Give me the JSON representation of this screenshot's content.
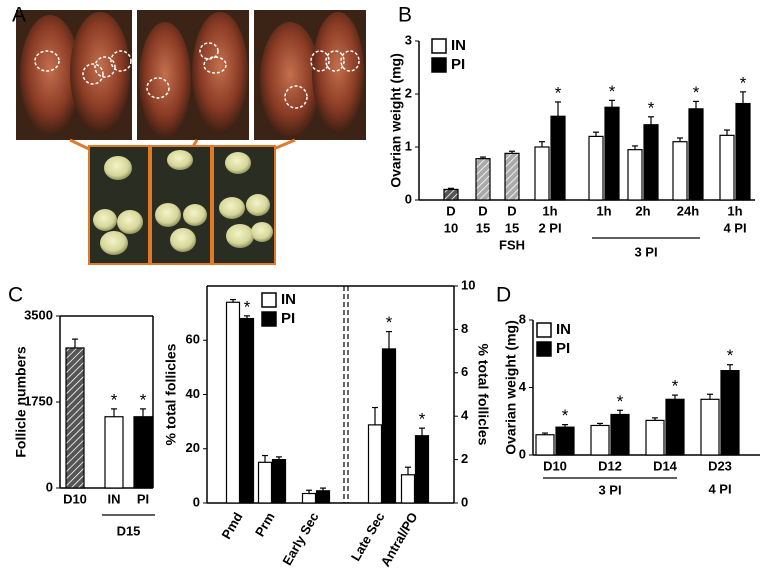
{
  "panel_labels": [
    "A",
    "B",
    "C",
    "D"
  ],
  "chart_data": [
    {
      "type": "bar",
      "ylabel": "Ovarian weight (mg)",
      "ylim": [
        0,
        3
      ],
      "yticks": [
        0,
        1,
        2,
        3
      ],
      "legend": "upper left",
      "categories": [
        [
          "D",
          "10"
        ],
        [
          "D",
          "15"
        ],
        [
          "D",
          "15",
          "FSH"
        ],
        [
          "1h",
          "2 PI"
        ],
        [
          "1h"
        ],
        [
          "2h"
        ],
        [
          "24h"
        ],
        [
          "1h",
          "4 PI"
        ]
      ],
      "groups": [
        {
          "label": "3 PI",
          "span": [
            4,
            6
          ]
        }
      ],
      "values": [
        0.2,
        0.78,
        0.88,
        null,
        null,
        null,
        null,
        null
      ],
      "errors": [
        0.02,
        0.03,
        0.04,
        null,
        null,
        null,
        null,
        null
      ],
      "colors": [
        "#555555",
        "#aaaaaa",
        "#aaaaaa",
        null,
        null,
        null,
        null,
        null
      ],
      "hatch": [
        true,
        true,
        true,
        false,
        false,
        false,
        false,
        false
      ],
      "series": [
        {
          "name": "IN",
          "color": "#ffffff",
          "values": [
            null,
            null,
            null,
            1.0,
            1.2,
            0.95,
            1.1,
            1.22
          ],
          "errors": [
            null,
            null,
            null,
            0.1,
            0.08,
            0.07,
            0.07,
            0.1
          ]
        },
        {
          "name": "PI",
          "color": "#000000",
          "values": [
            null,
            null,
            null,
            1.58,
            1.75,
            1.42,
            1.72,
            1.82
          ],
          "errors": [
            null,
            null,
            null,
            0.27,
            0.13,
            0.15,
            0.14,
            0.22
          ],
          "annotations": [
            null,
            null,
            null,
            "*",
            "*",
            "*",
            "*",
            "*"
          ]
        }
      ]
    },
    {
      "type": "bar",
      "ylabel": "Follicle numbers",
      "ylim": [
        0,
        3500
      ],
      "yticks": [
        0,
        1750,
        3500
      ],
      "categories": [
        [
          "D10"
        ],
        [
          "IN"
        ],
        [
          "PI"
        ]
      ],
      "groups": [
        {
          "label": "D15",
          "span": [
            1,
            2
          ]
        }
      ],
      "values": [
        2850,
        1450,
        1450
      ],
      "errors": [
        180,
        160,
        160
      ],
      "colors": [
        "#555555",
        "#ffffff",
        "#000000"
      ],
      "hatch": [
        true,
        false,
        false
      ],
      "annotations": [
        null,
        "*",
        "*"
      ]
    },
    {
      "type": "bar",
      "ylabel": "% total follicles",
      "y2label": "% total follicles",
      "ylim": [
        0,
        80
      ],
      "yticks": [
        0,
        20,
        40,
        60
      ],
      "y2lim": [
        0,
        10
      ],
      "y2ticks": [
        0,
        2,
        4,
        6,
        8,
        10
      ],
      "legend": "upper left",
      "xtick_rotation": 60,
      "divider": "dashed",
      "categories": [
        [
          "Pmd"
        ],
        [
          "Prm"
        ],
        [
          "Early Sec"
        ],
        [
          "Late Sec"
        ],
        [
          "Antral/PO"
        ]
      ],
      "axes": [
        "y",
        "y",
        "y",
        "y2",
        "y2"
      ],
      "series": [
        {
          "name": "IN",
          "color": "#ffffff",
          "values": [
            74,
            15,
            3.5,
            3.6,
            1.3
          ],
          "errors": [
            1,
            2.5,
            1.2,
            0.8,
            0.35
          ]
        },
        {
          "name": "PI",
          "color": "#000000",
          "values": [
            68,
            16,
            4.5,
            7.1,
            3.1
          ],
          "errors": [
            1,
            1,
            1,
            0.8,
            0.35
          ],
          "annotations": [
            "*",
            null,
            null,
            "*",
            "*"
          ]
        }
      ]
    },
    {
      "type": "bar",
      "ylabel": "Ovarian weight (mg)",
      "ylim": [
        0,
        8
      ],
      "yticks": [
        0,
        4,
        8
      ],
      "legend": "upper left",
      "categories": [
        [
          "D10"
        ],
        [
          "D12"
        ],
        [
          "D14"
        ],
        [
          "D23",
          "4 PI"
        ]
      ],
      "groups": [
        {
          "label": "3 PI",
          "span": [
            0,
            2
          ]
        }
      ],
      "series": [
        {
          "name": "IN",
          "color": "#ffffff",
          "values": [
            1.2,
            1.75,
            2.05,
            3.3
          ],
          "errors": [
            0.1,
            0.12,
            0.15,
            0.3
          ]
        },
        {
          "name": "PI",
          "color": "#000000",
          "values": [
            1.65,
            2.4,
            3.3,
            5.0
          ],
          "errors": [
            0.15,
            0.25,
            0.25,
            0.35
          ],
          "annotations": [
            "*",
            "*",
            "*",
            "*"
          ]
        }
      ]
    }
  ]
}
